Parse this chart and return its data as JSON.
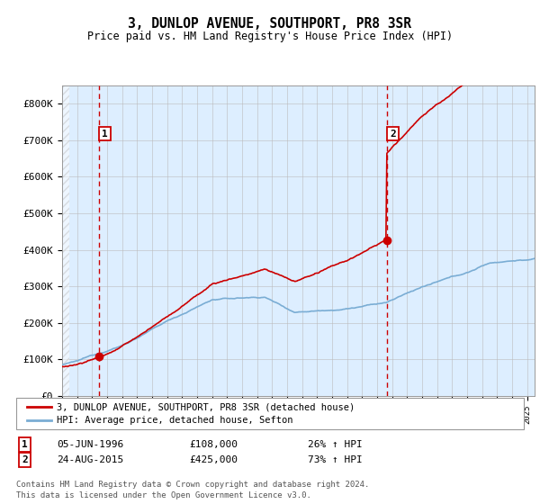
{
  "title": "3, DUNLOP AVENUE, SOUTHPORT, PR8 3SR",
  "subtitle": "Price paid vs. HM Land Registry's House Price Index (HPI)",
  "ylim": [
    0,
    850000
  ],
  "yticks": [
    0,
    100000,
    200000,
    300000,
    400000,
    500000,
    600000,
    700000,
    800000
  ],
  "ytick_labels": [
    "£0",
    "£100K",
    "£200K",
    "£300K",
    "£400K",
    "£500K",
    "£600K",
    "£700K",
    "£800K"
  ],
  "xlim_start": 1994.0,
  "xlim_end": 2025.5,
  "hpi_color": "#7aadd4",
  "price_color": "#cc0000",
  "sale1_date": 1996.44,
  "sale1_price": 108000,
  "sale2_date": 2015.65,
  "sale2_price": 425000,
  "sale1_display": "05-JUN-1996",
  "sale1_amount": "£108,000",
  "sale1_hpi": "26% ↑ HPI",
  "sale2_display": "24-AUG-2015",
  "sale2_amount": "£425,000",
  "sale2_hpi": "73% ↑ HPI",
  "legend_line1": "3, DUNLOP AVENUE, SOUTHPORT, PR8 3SR (detached house)",
  "legend_line2": "HPI: Average price, detached house, Sefton",
  "footer": "Contains HM Land Registry data © Crown copyright and database right 2024.\nThis data is licensed under the Open Government Licence v3.0.",
  "bg_color": "#ddeeff",
  "grid_color": "#bbbbbb"
}
